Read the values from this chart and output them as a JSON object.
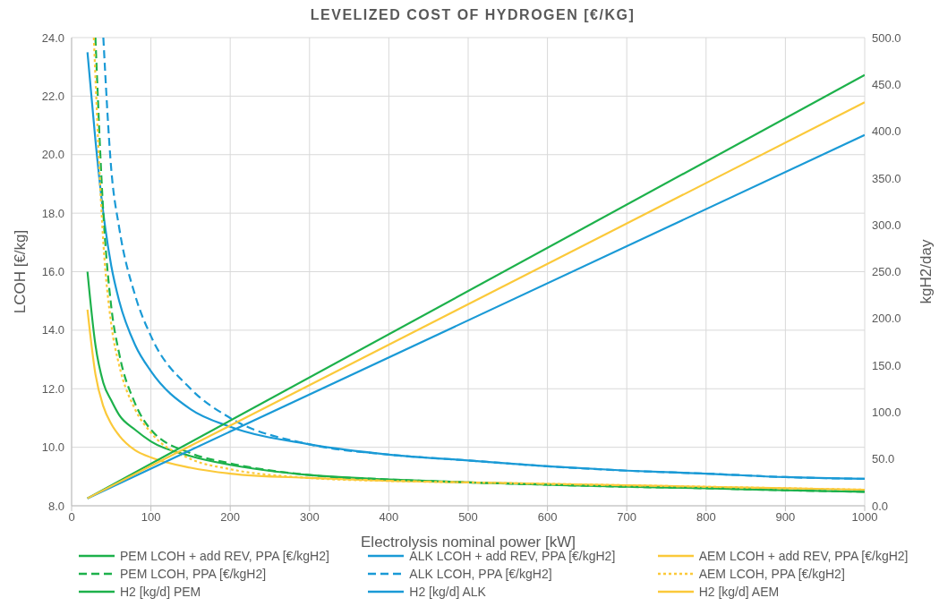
{
  "chart_data": {
    "type": "line",
    "title": "LEVELIZED COST OF HYDROGEN [€/KG]",
    "xlabel": "Electrolysis nominal power [kW]",
    "ylabel": "LCOH [€/kg]",
    "y2label": "kgH2/day",
    "xlim": [
      0,
      1000
    ],
    "xticks": [
      0,
      100,
      200,
      300,
      400,
      500,
      600,
      700,
      800,
      900,
      1000
    ],
    "ylim": [
      8,
      24
    ],
    "yticks": [
      {
        "value": 8,
        "label": "8.0"
      },
      {
        "value": 10,
        "label": "10.0"
      },
      {
        "value": 12,
        "label": "12.0"
      },
      {
        "value": 14,
        "label": "14.0"
      },
      {
        "value": 16,
        "label": "16.0"
      },
      {
        "value": 18,
        "label": "18.0"
      },
      {
        "value": 20,
        "label": "20.0"
      },
      {
        "value": 22,
        "label": "22.0"
      },
      {
        "value": 24,
        "label": "24.0"
      }
    ],
    "y2lim": [
      0,
      500
    ],
    "y2ticks": [
      {
        "value": 0,
        "label": "0.0"
      },
      {
        "value": 50,
        "label": "50.0"
      },
      {
        "value": 100,
        "label": "100.0"
      },
      {
        "value": 150,
        "label": "150.0"
      },
      {
        "value": 200,
        "label": "200.0"
      },
      {
        "value": 250,
        "label": "250.0"
      },
      {
        "value": 300,
        "label": "300.0"
      },
      {
        "value": 350,
        "label": "350.0"
      },
      {
        "value": 400,
        "label": "400.0"
      },
      {
        "value": 450,
        "label": "450.0"
      },
      {
        "value": 500,
        "label": "500.0"
      }
    ],
    "grid": true,
    "legend": "bottom",
    "marker": "none",
    "series": [
      {
        "name": "PEM LCOH + add REV, PPA [€/kgH2]",
        "color": "#1db14b",
        "line_style": "solid",
        "x": [
          20,
          30,
          40,
          50,
          60,
          80,
          100,
          150,
          200,
          300,
          400,
          500,
          600,
          700,
          800,
          900,
          1000
        ],
        "values": [
          16.0,
          13.5,
          12.2,
          11.6,
          11.1,
          10.6,
          10.2,
          9.7,
          9.4,
          9.05,
          8.9,
          8.8,
          8.72,
          8.65,
          8.6,
          8.53,
          8.48
        ]
      },
      {
        "name": "ALK LCOH + add REV, PPA [€/kgH2]",
        "color": "#1a9ad6",
        "line_style": "solid",
        "x": [
          20,
          30,
          40,
          50,
          60,
          80,
          100,
          150,
          200,
          300,
          400,
          500,
          600,
          700,
          800,
          900,
          1000
        ],
        "values": [
          23.5,
          20.5,
          18.0,
          16.2,
          15.0,
          13.5,
          12.6,
          11.3,
          10.7,
          10.1,
          9.75,
          9.55,
          9.35,
          9.2,
          9.1,
          8.98,
          8.92
        ]
      },
      {
        "name": "AEM LCOH + add REV, PPA [€/kgH2]",
        "color": "#fbc93a",
        "line_style": "solid",
        "x": [
          20,
          30,
          40,
          50,
          60,
          80,
          100,
          150,
          200,
          300,
          400,
          500,
          600,
          700,
          800,
          900,
          1000
        ],
        "values": [
          14.7,
          12.5,
          11.4,
          10.8,
          10.4,
          9.9,
          9.65,
          9.3,
          9.1,
          8.95,
          8.85,
          8.8,
          8.75,
          8.7,
          8.65,
          8.6,
          8.55
        ]
      },
      {
        "name": "PEM LCOH, PPA [€/kgH2]",
        "color": "#1db14b",
        "line_style": "dashed",
        "x": [
          30,
          40,
          50,
          60,
          80,
          100,
          150,
          200,
          300,
          400,
          500,
          600,
          700,
          800,
          900,
          1000
        ],
        "values": [
          24.0,
          18.0,
          14.8,
          13.2,
          11.5,
          10.6,
          9.8,
          9.45,
          9.05,
          8.9,
          8.8,
          8.72,
          8.65,
          8.6,
          8.53,
          8.48
        ]
      },
      {
        "name": "ALK LCOH, PPA [€/kgH2]",
        "color": "#1a9ad6",
        "line_style": "dashed",
        "x": [
          40,
          50,
          60,
          80,
          100,
          150,
          200,
          300,
          400,
          500,
          600,
          700,
          800,
          900,
          1000
        ],
        "values": [
          24.0,
          19.5,
          17.5,
          15.2,
          13.8,
          12.0,
          11.0,
          10.1,
          9.75,
          9.55,
          9.35,
          9.2,
          9.1,
          8.98,
          8.92
        ]
      },
      {
        "name": "AEM LCOH, PPA [€/kgH2]",
        "color": "#fbc93a",
        "line_style": "dotted",
        "x": [
          28,
          40,
          50,
          60,
          80,
          100,
          150,
          200,
          300,
          400,
          500,
          600,
          700,
          800,
          900,
          1000
        ],
        "values": [
          24.0,
          17.0,
          14.2,
          12.8,
          11.3,
          10.5,
          9.6,
          9.25,
          8.95,
          8.85,
          8.8,
          8.75,
          8.7,
          8.65,
          8.6,
          8.55
        ]
      },
      {
        "name": "H2 [kg/d] PEM",
        "color": "#1db14b",
        "line_style": "solid",
        "axis": "y2",
        "x": [
          20,
          1000
        ],
        "values": [
          8,
          460
        ]
      },
      {
        "name": "H2 [kg/d] ALK",
        "color": "#1a9ad6",
        "line_style": "solid",
        "axis": "y2",
        "x": [
          20,
          1000
        ],
        "values": [
          8,
          396
        ]
      },
      {
        "name": "H2 [kg/d] AEM",
        "color": "#fbc93a",
        "line_style": "solid",
        "axis": "y2",
        "x": [
          20,
          1000
        ],
        "values": [
          8,
          431
        ]
      }
    ]
  }
}
